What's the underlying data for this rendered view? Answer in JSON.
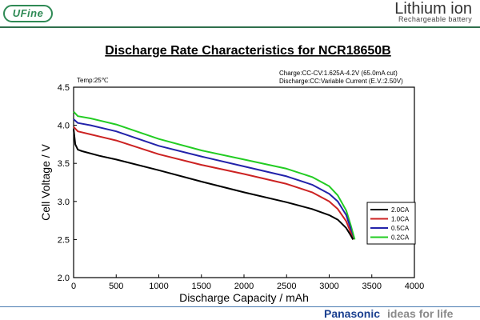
{
  "header": {
    "logo_text": "UFine",
    "brand_title": "Lithium ion",
    "brand_subtitle": "Rechargeable  battery"
  },
  "footer": {
    "brand": "Panasonic",
    "tagline": "ideas for life"
  },
  "colors": {
    "logo": "#2f8a55",
    "footer_brand": "#1a3f8f",
    "footer_tagline": "#8a8a8a"
  },
  "chart_data": {
    "type": "line",
    "title": "Discharge Rate Characteristics for NCR18650B",
    "temp_note": "Temp:25℃",
    "charge_note": "Charge:CC-CV:1.625A-4.2V (65.0mA cut)",
    "discharge_note": "Discharge:CC:Variable Current (E.V.:2.50V)",
    "xlabel": "Discharge  Capacity  /  mAh",
    "ylabel": "Cell  Voltage  /  V",
    "xlim": [
      0,
      4000
    ],
    "ylim": [
      2.0,
      4.5
    ],
    "x_ticks": [
      0,
      500,
      1000,
      1500,
      2000,
      2500,
      3000,
      3500,
      4000
    ],
    "y_ticks": [
      2.0,
      2.5,
      3.0,
      3.5,
      4.0,
      4.5
    ],
    "x_tick_labels": [
      "0",
      "500",
      "1000",
      "1500",
      "2000",
      "2500",
      "3000",
      "3500",
      "4000"
    ],
    "y_tick_labels": [
      "2.0",
      "2.5",
      "3.0",
      "3.5",
      "4.0",
      "4.5"
    ],
    "grid": false,
    "legend_position": "bottom-right",
    "series": [
      {
        "name": "2.0CA",
        "color": "#000000",
        "points": [
          [
            0,
            3.95
          ],
          [
            20,
            3.75
          ],
          [
            50,
            3.68
          ],
          [
            100,
            3.66
          ],
          [
            300,
            3.6
          ],
          [
            500,
            3.55
          ],
          [
            1000,
            3.41
          ],
          [
            1500,
            3.26
          ],
          [
            2000,
            3.12
          ],
          [
            2500,
            2.99
          ],
          [
            2800,
            2.9
          ],
          [
            3000,
            2.82
          ],
          [
            3100,
            2.76
          ],
          [
            3200,
            2.65
          ],
          [
            3250,
            2.56
          ],
          [
            3280,
            2.5
          ]
        ]
      },
      {
        "name": "1.0CA",
        "color": "#cc2222",
        "points": [
          [
            0,
            3.98
          ],
          [
            50,
            3.92
          ],
          [
            200,
            3.88
          ],
          [
            500,
            3.8
          ],
          [
            1000,
            3.62
          ],
          [
            1500,
            3.48
          ],
          [
            2000,
            3.36
          ],
          [
            2500,
            3.23
          ],
          [
            2800,
            3.12
          ],
          [
            3000,
            3.0
          ],
          [
            3100,
            2.9
          ],
          [
            3200,
            2.74
          ],
          [
            3250,
            2.6
          ],
          [
            3280,
            2.5
          ]
        ]
      },
      {
        "name": "0.5CA",
        "color": "#2222aa",
        "points": [
          [
            0,
            4.08
          ],
          [
            50,
            4.03
          ],
          [
            200,
            4.0
          ],
          [
            500,
            3.92
          ],
          [
            1000,
            3.73
          ],
          [
            1500,
            3.59
          ],
          [
            2000,
            3.46
          ],
          [
            2500,
            3.33
          ],
          [
            2800,
            3.22
          ],
          [
            3000,
            3.1
          ],
          [
            3100,
            3.0
          ],
          [
            3200,
            2.82
          ],
          [
            3250,
            2.65
          ],
          [
            3280,
            2.5
          ]
        ]
      },
      {
        "name": "0.2CA",
        "color": "#22cc22",
        "points": [
          [
            0,
            4.18
          ],
          [
            50,
            4.12
          ],
          [
            200,
            4.09
          ],
          [
            500,
            4.01
          ],
          [
            1000,
            3.82
          ],
          [
            1500,
            3.67
          ],
          [
            2000,
            3.55
          ],
          [
            2500,
            3.43
          ],
          [
            2800,
            3.32
          ],
          [
            3000,
            3.2
          ],
          [
            3100,
            3.08
          ],
          [
            3200,
            2.88
          ],
          [
            3250,
            2.7
          ],
          [
            3300,
            2.5
          ]
        ]
      }
    ]
  }
}
